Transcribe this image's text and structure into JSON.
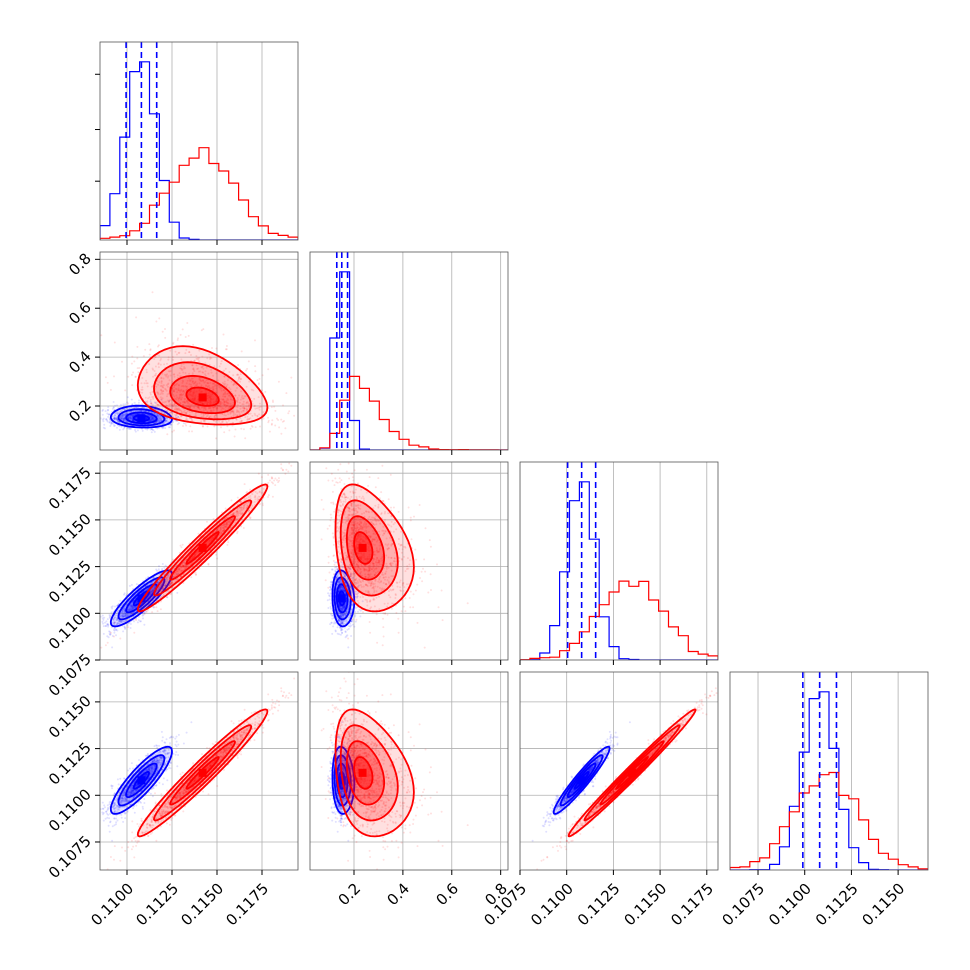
{
  "chart_data": {
    "type": "corner",
    "title": "",
    "grid": true,
    "series": [
      {
        "id": "a",
        "color": "#0000ff",
        "mean": [
          0.1108,
          0.15,
          0.1108,
          0.1108
        ],
        "std": [
          0.00085,
          0.022,
          0.00075,
          0.0009
        ],
        "corr": [
          [
            1,
            -0.1,
            0.86,
            0.86
          ],
          [
            -0.1,
            1,
            -0.1,
            -0.1
          ],
          [
            0.86,
            -0.1,
            1,
            0.95
          ],
          [
            0.86,
            -0.1,
            0.95,
            1
          ]
        ]
      },
      {
        "id": "b",
        "color": "#ff0000",
        "mean": [
          0.1142,
          0.235,
          0.1135,
          0.1112
        ],
        "std": [
          0.0018,
          0.075,
          0.0017,
          0.0017
        ],
        "corr": [
          [
            1,
            -0.3,
            0.97,
            0.97
          ],
          [
            -0.3,
            1,
            -0.3,
            -0.3
          ],
          [
            0.97,
            -0.3,
            1,
            0.99
          ],
          [
            0.97,
            -0.3,
            0.99,
            1
          ]
        ]
      }
    ],
    "quantiles_series": "a",
    "parameters": [
      {
        "range": [
          0.1085,
          0.1195
        ],
        "ticks": [
          0.11,
          0.1125,
          0.115,
          0.1175
        ],
        "tick_labels": [
          "0.1100",
          "0.1125",
          "0.1150",
          "0.1175"
        ]
      },
      {
        "range": [
          0.02,
          0.83
        ],
        "ticks": [
          0.2,
          0.4,
          0.6,
          0.8
        ],
        "tick_labels": [
          "0.2",
          "0.4",
          "0.6",
          "0.8"
        ]
      },
      {
        "range": [
          0.1075,
          0.1181
        ],
        "ticks": [
          0.1075,
          0.11,
          0.1125,
          0.115,
          0.1175
        ],
        "tick_labels": [
          "0.1075",
          "0.1100",
          "0.1125",
          "0.1150",
          "0.1175"
        ]
      },
      {
        "range": [
          0.106,
          0.1166
        ],
        "ticks": [
          0.1075,
          0.11,
          0.1125,
          0.115
        ],
        "tick_labels": [
          "0.1075",
          "0.1100",
          "0.1125",
          "0.1150"
        ]
      }
    ],
    "histogram_bins": 20,
    "contour_levels_sigma": [
      0.5,
      1.0,
      1.5,
      2.0
    ]
  }
}
